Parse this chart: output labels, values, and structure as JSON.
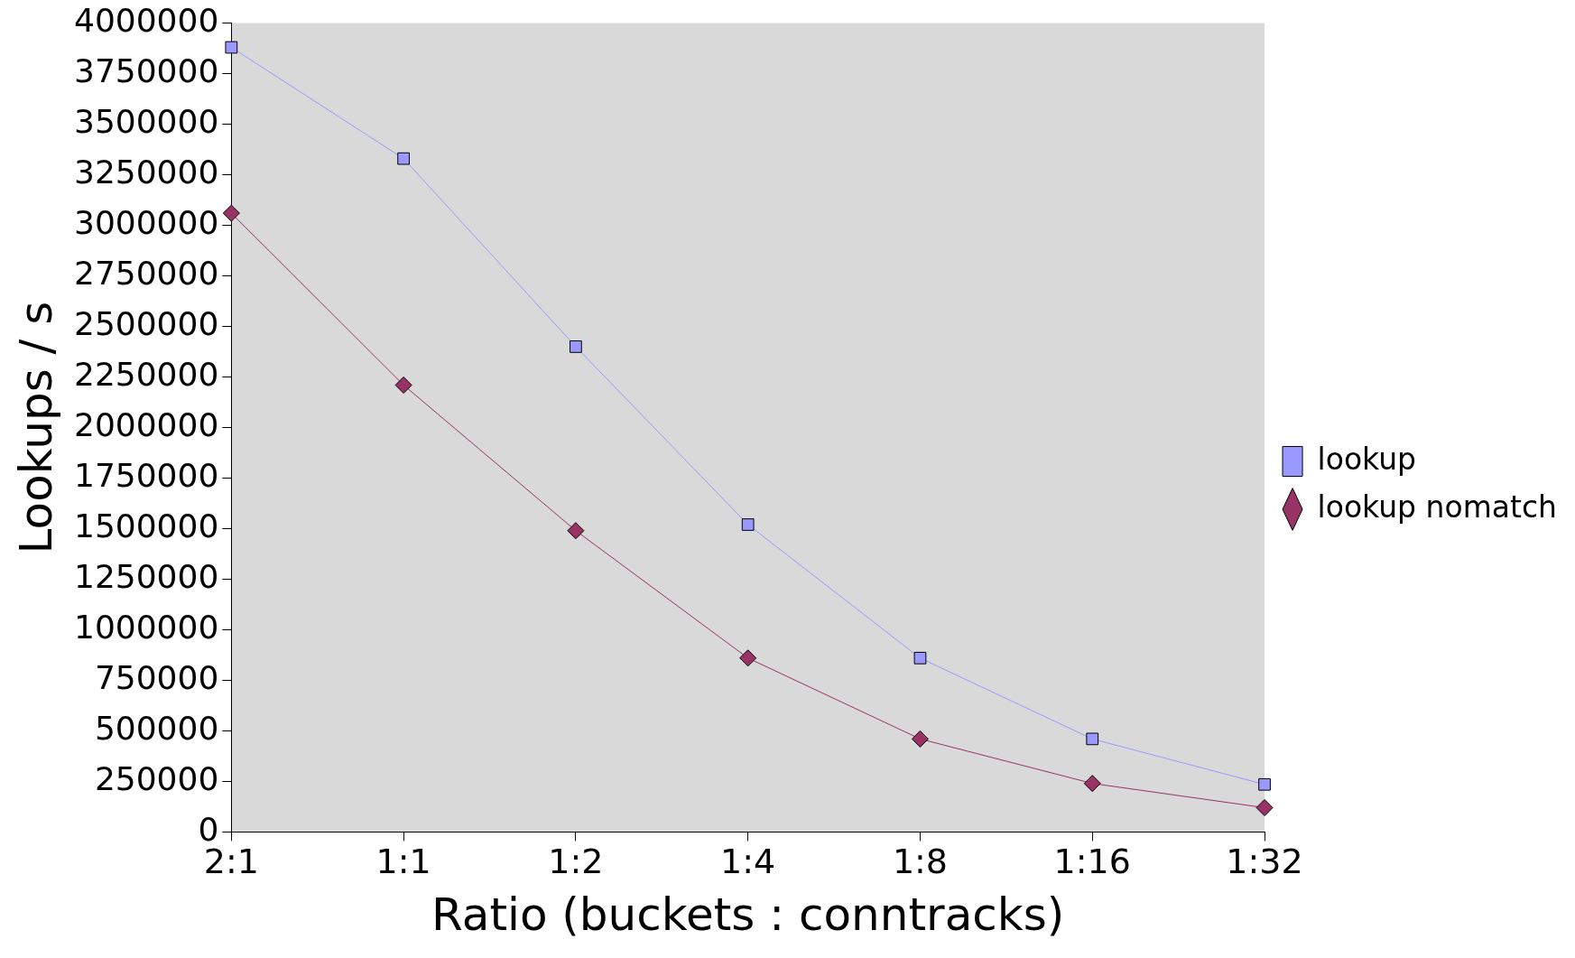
{
  "chart_data": {
    "type": "line",
    "xlabel": "Ratio (buckets : conntracks)",
    "ylabel": "Lookups / s",
    "categories": [
      "2:1",
      "1:1",
      "1:2",
      "1:4",
      "1:8",
      "1:16",
      "1:32"
    ],
    "series": [
      {
        "name": "lookup",
        "color": "#9999ff",
        "marker": "square",
        "values": [
          3880000,
          3330000,
          2400000,
          1520000,
          860000,
          460000,
          235000
        ]
      },
      {
        "name": "lookup nomatch",
        "color": "#993366",
        "marker": "diamond",
        "values": [
          3060000,
          2210000,
          1490000,
          860000,
          460000,
          240000,
          120000
        ]
      }
    ],
    "ylim": [
      0,
      4000000
    ],
    "yticks": [
      0,
      250000,
      500000,
      750000,
      1000000,
      1250000,
      1500000,
      1750000,
      2000000,
      2250000,
      2500000,
      2750000,
      3000000,
      3250000,
      3500000,
      3750000,
      4000000
    ],
    "grid": false,
    "legend": "right",
    "line_style": "solid"
  }
}
